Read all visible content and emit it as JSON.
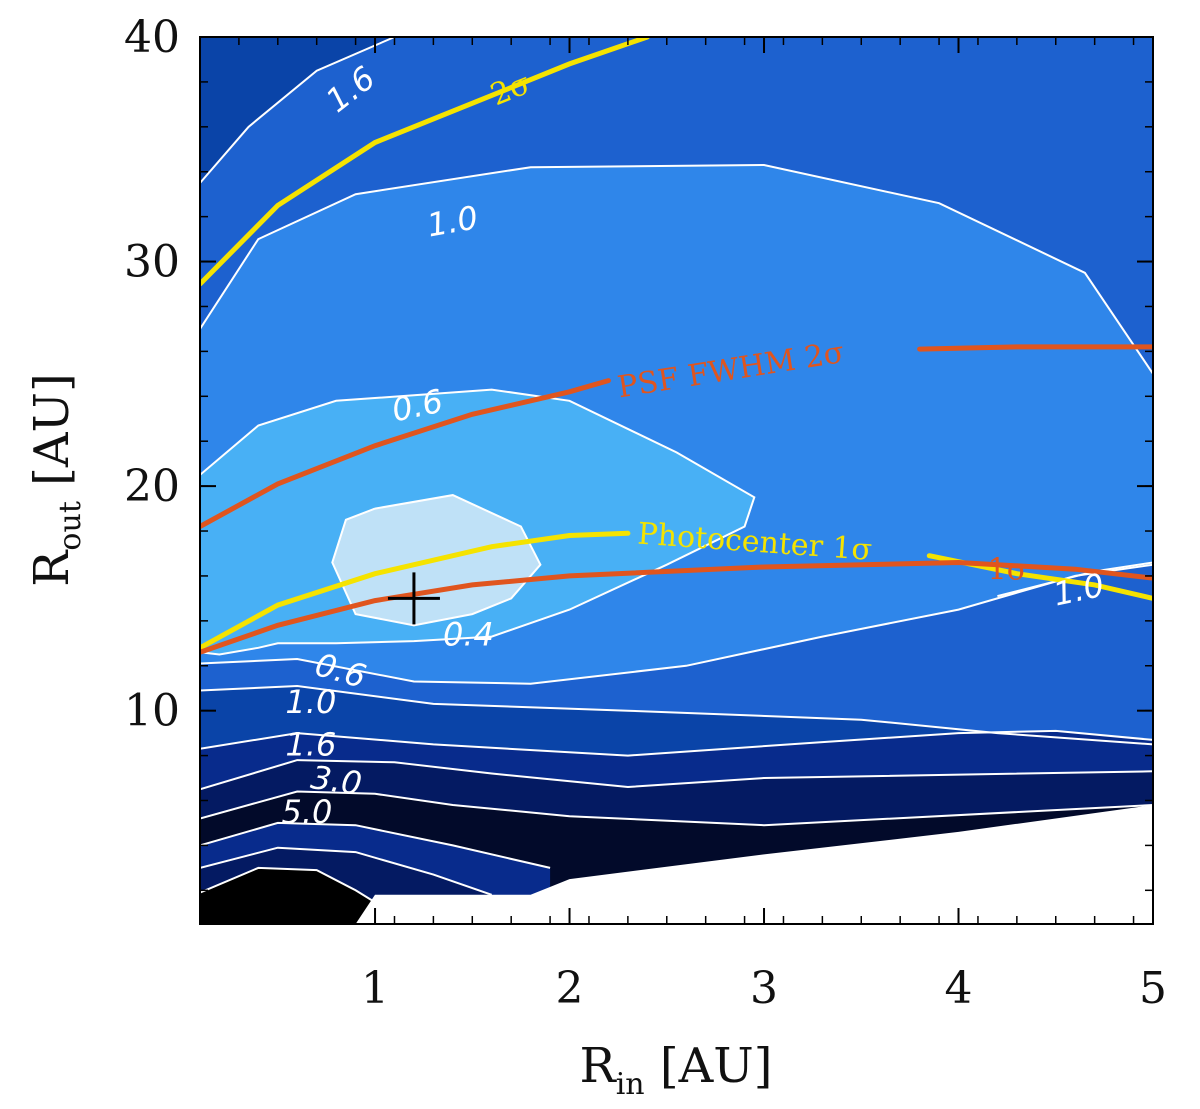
{
  "chart_data": {
    "type": "heatmap",
    "subtype": "filled-contour",
    "xlabel": {
      "main": "R",
      "sub": "in",
      "unit": " [AU]"
    },
    "ylabel": {
      "main": "R",
      "sub": "out",
      "unit": " [AU]"
    },
    "xlim": [
      0.1,
      5
    ],
    "ylim": [
      0.5,
      40
    ],
    "xticks": [
      1,
      2,
      3,
      4,
      5
    ],
    "yticks": [
      10,
      20,
      30,
      40
    ],
    "fill_levels": [
      {
        "name": "above-1.6",
        "color": "#0a44a8"
      },
      {
        "name": "1.0-1.6",
        "color": "#1d61cf"
      },
      {
        "name": "0.6-1.0",
        "color": "#2f86ea"
      },
      {
        "name": "0.4-0.6",
        "color": "#48b0f5"
      },
      {
        "name": "below-0.4",
        "color": "#bfe1f7"
      },
      {
        "name": "3.0-5.0",
        "color": "#082b8c"
      },
      {
        "name": "5.0-plus",
        "color": "#041a62"
      },
      {
        "name": "deep",
        "color": "#020a2a"
      },
      {
        "name": "minimum",
        "color": "#000000"
      }
    ],
    "contours": [
      {
        "level": "1.6",
        "points": [
          [
            0.1,
            33.5
          ],
          [
            0.35,
            36
          ],
          [
            0.7,
            38.5
          ],
          [
            1.1,
            40
          ]
        ]
      },
      {
        "level": "1.0",
        "points": [
          [
            0.1,
            27
          ],
          [
            0.4,
            31
          ],
          [
            0.9,
            33
          ],
          [
            1.8,
            34.2
          ],
          [
            3.0,
            34.3
          ],
          [
            3.9,
            32.6
          ],
          [
            4.65,
            29.5
          ],
          [
            5.0,
            25
          ]
        ]
      },
      {
        "level": "1.0",
        "points": [
          [
            4.2,
            15.1
          ],
          [
            4.7,
            16.2
          ],
          [
            5.0,
            16.6
          ]
        ]
      },
      {
        "level": "0.6",
        "points": [
          [
            0.1,
            20.5
          ],
          [
            0.4,
            22.7
          ],
          [
            0.8,
            23.8
          ],
          [
            1.6,
            24.3
          ],
          [
            2.0,
            23.8
          ],
          [
            2.55,
            21.5
          ],
          [
            2.95,
            19.5
          ],
          [
            2.9,
            18.2
          ],
          [
            2.5,
            16.5
          ],
          [
            2.0,
            14.5
          ],
          [
            1.6,
            13.3
          ],
          [
            1.2,
            13.1
          ],
          [
            0.8,
            13
          ],
          [
            0.5,
            13
          ],
          [
            0.4,
            12.8
          ],
          [
            0.2,
            12.5
          ],
          [
            0.1,
            12.6
          ]
        ]
      },
      {
        "level": "0.4",
        "points": [
          [
            1.0,
            19
          ],
          [
            1.4,
            19.6
          ],
          [
            1.75,
            18.2
          ],
          [
            1.85,
            16.5
          ],
          [
            1.7,
            15
          ],
          [
            1.5,
            14.3
          ],
          [
            1.2,
            13.8
          ],
          [
            0.9,
            14.3
          ],
          [
            0.78,
            16.6
          ],
          [
            0.85,
            18.5
          ],
          [
            1.0,
            19
          ]
        ]
      },
      {
        "level": "0.6",
        "points": [
          [
            0.1,
            12.1
          ],
          [
            0.6,
            12.3
          ],
          [
            1.2,
            11.3
          ],
          [
            1.8,
            11.2
          ],
          [
            2.6,
            12
          ],
          [
            3.3,
            13.3
          ],
          [
            4.0,
            14.5
          ],
          [
            4.6,
            16
          ],
          [
            5.0,
            16.5
          ]
        ]
      },
      {
        "level": "1.0",
        "points": [
          [
            0.1,
            10.9
          ],
          [
            0.6,
            11.1
          ],
          [
            1.3,
            10.3
          ],
          [
            2.3,
            10
          ],
          [
            3.5,
            9.6
          ],
          [
            4.2,
            9
          ],
          [
            5.0,
            8.5
          ]
        ]
      },
      {
        "level": "1.6",
        "points": [
          [
            0.1,
            8.3
          ],
          [
            0.6,
            9
          ],
          [
            1.3,
            8.5
          ],
          [
            2.3,
            8
          ],
          [
            3.3,
            8.6
          ],
          [
            4.0,
            9
          ],
          [
            4.5,
            9.1
          ],
          [
            5.0,
            8.7
          ]
        ]
      },
      {
        "level": "3.0",
        "points": [
          [
            0.1,
            6.5
          ],
          [
            0.6,
            7.8
          ],
          [
            1.1,
            7.7
          ],
          [
            1.6,
            7.2
          ],
          [
            2.3,
            6.6
          ],
          [
            3.0,
            7
          ],
          [
            5.0,
            7.3
          ]
        ]
      },
      {
        "level": "5.0",
        "points": [
          [
            0.1,
            5.2
          ],
          [
            0.6,
            6.4
          ],
          [
            1.0,
            6.3
          ],
          [
            1.4,
            5.8
          ],
          [
            2.0,
            5.3
          ],
          [
            3.0,
            4.9
          ],
          [
            5.0,
            5.8
          ]
        ]
      },
      {
        "level": "",
        "points": [
          [
            0.1,
            4
          ],
          [
            0.5,
            5
          ],
          [
            0.9,
            4.9
          ],
          [
            1.4,
            4
          ],
          [
            1.9,
            3
          ]
        ]
      },
      {
        "level": "",
        "points": [
          [
            0.1,
            3
          ],
          [
            0.5,
            3.9
          ],
          [
            0.9,
            3.7
          ],
          [
            1.3,
            2.7
          ],
          [
            1.6,
            1.8
          ]
        ]
      },
      {
        "level": "",
        "points": [
          [
            0.1,
            1.9
          ],
          [
            0.4,
            3
          ],
          [
            0.7,
            2.9
          ],
          [
            0.9,
            2
          ],
          [
            1.05,
            1.2
          ]
        ]
      }
    ],
    "contour_labels": [
      {
        "text": "1.6",
        "x": 0.88,
        "y": 37.6,
        "angle": -38
      },
      {
        "text": "1.0",
        "x": 1.4,
        "y": 31.7,
        "angle": -10
      },
      {
        "text": "0.6",
        "x": 1.22,
        "y": 23.5,
        "angle": -12
      },
      {
        "text": "0.4",
        "x": 1.48,
        "y": 13.3,
        "angle": 0
      },
      {
        "text": "0.6",
        "x": 0.82,
        "y": 11.7,
        "angle": 16
      },
      {
        "text": "1.0",
        "x": 0.67,
        "y": 10.3,
        "angle": 0
      },
      {
        "text": "1.6",
        "x": 0.67,
        "y": 8.4,
        "angle": 0
      },
      {
        "text": "3.0",
        "x": 0.8,
        "y": 6.8,
        "angle": 8
      },
      {
        "text": "5.0",
        "x": 0.65,
        "y": 5.4,
        "angle": 0
      },
      {
        "text": "1.0",
        "x": 4.62,
        "y": 15.3,
        "angle": -12
      }
    ],
    "overlays": [
      {
        "name": "2σ (yellow)",
        "color": "#f5e300",
        "points": [
          [
            0.1,
            29
          ],
          [
            0.5,
            32.5
          ],
          [
            1.0,
            35.3
          ],
          [
            1.6,
            37.4
          ],
          [
            2.0,
            38.8
          ],
          [
            2.4,
            40
          ]
        ]
      },
      {
        "name": "Photocenter 1σ",
        "color": "#f5e300",
        "points": [
          [
            0.1,
            12.8
          ],
          [
            0.5,
            14.7
          ],
          [
            1.0,
            16.1
          ],
          [
            1.6,
            17.3
          ],
          [
            2.0,
            17.8
          ],
          [
            2.3,
            17.9
          ]
        ]
      },
      {
        "name": "yellow 1σ right",
        "color": "#f5e300",
        "points": [
          [
            3.85,
            16.9
          ],
          [
            4.3,
            16.1
          ],
          [
            4.7,
            15.6
          ],
          [
            5.0,
            15
          ]
        ]
      },
      {
        "name": "PSF FWHM 2σ",
        "color": "#e0551e",
        "points": [
          [
            0.1,
            18.2
          ],
          [
            0.5,
            20.1
          ],
          [
            1.0,
            21.8
          ],
          [
            1.5,
            23.2
          ],
          [
            2.0,
            24.2
          ],
          [
            2.2,
            24.7
          ]
        ]
      },
      {
        "name": "PSF FWHM 2σ right",
        "color": "#e0551e",
        "points": [
          [
            3.8,
            26.1
          ],
          [
            4.3,
            26.2
          ],
          [
            5.0,
            26.2
          ]
        ]
      },
      {
        "name": "red 1σ",
        "color": "#e0551e",
        "points": [
          [
            0.1,
            12.6
          ],
          [
            0.5,
            13.8
          ],
          [
            1.0,
            14.9
          ],
          [
            1.5,
            15.6
          ],
          [
            2.0,
            16
          ],
          [
            3.0,
            16.4
          ],
          [
            4.0,
            16.6
          ],
          [
            4.6,
            16.3
          ],
          [
            5.0,
            15.9
          ]
        ]
      }
    ],
    "annotations": [
      {
        "text": "2σ",
        "x": 1.7,
        "y": 37.6,
        "angle": -22,
        "color": "#f5e300"
      },
      {
        "text": "PSF FWHM 2σ",
        "x": 2.25,
        "y": 24.3,
        "angle": -9,
        "color": "#e0551e"
      },
      {
        "text": "Photocenter 1σ",
        "x": 2.35,
        "y": 17.8,
        "angle": 4,
        "color": "#f5e300"
      },
      {
        "text": "1σ",
        "x": 4.15,
        "y": 16.2,
        "angle": 0,
        "color": "#e0551e"
      }
    ],
    "marker": {
      "symbol": "+",
      "x": 1.2,
      "y": 15,
      "color": "#000000"
    },
    "blank_region": {
      "points": [
        [
          0.9,
          0.5
        ],
        [
          1.0,
          1.8
        ],
        [
          1.8,
          1.8
        ],
        [
          2.0,
          2.5
        ],
        [
          3.0,
          3.6
        ],
        [
          4.0,
          4.6
        ],
        [
          5.0,
          5.8
        ],
        [
          5.0,
          0.5
        ]
      ]
    }
  }
}
